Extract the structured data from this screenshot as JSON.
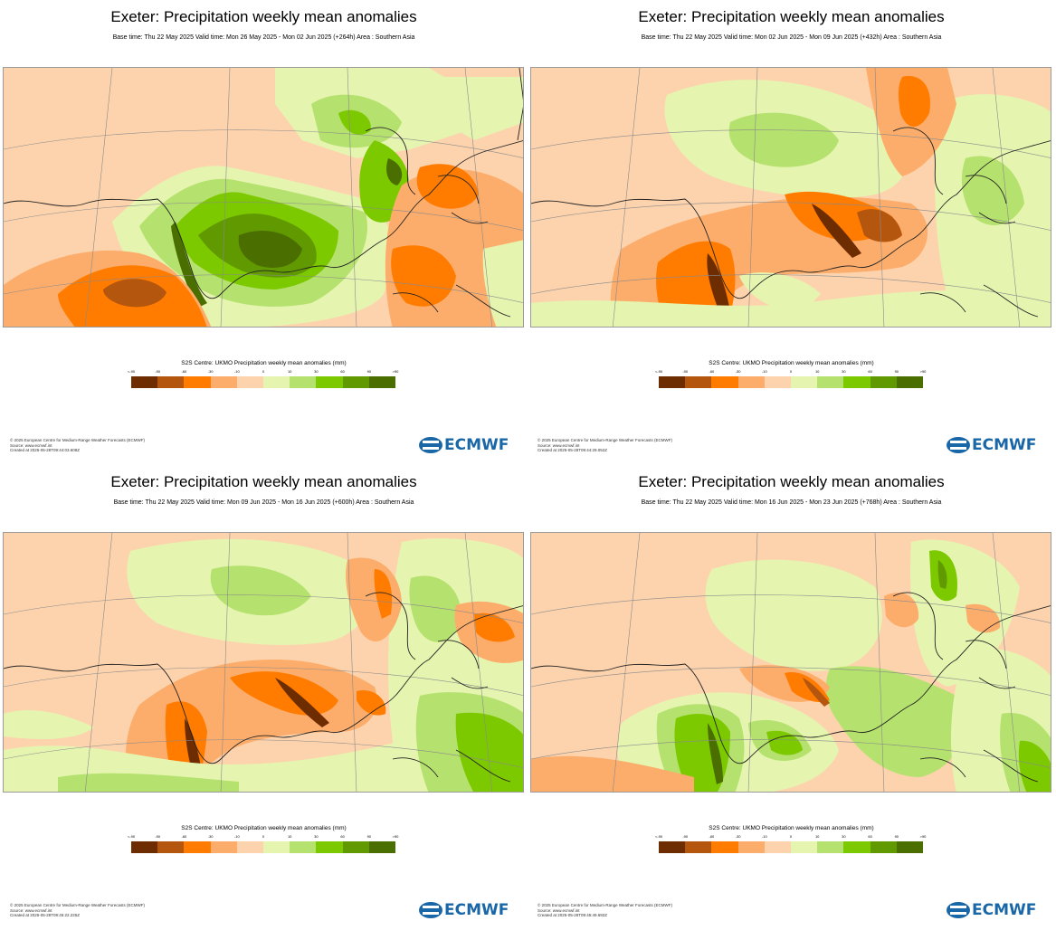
{
  "legend": {
    "title": "S2S Centre: UKMO Precipitation weekly mean anomalies (mm)",
    "ticks": [
      "<-90",
      "-90",
      "-60",
      "-30",
      "-10",
      "0",
      "10",
      "30",
      "60",
      "90",
      ">90"
    ],
    "colors": [
      "#6e2d00",
      "#b5560f",
      "#ff7c00",
      "#fdad6b",
      "#fdd3ad",
      "#e5f5b0",
      "#b5e16e",
      "#7dc900",
      "#619a00",
      "#4b6e00"
    ]
  },
  "panels": [
    {
      "title": "Exeter: Precipitation weekly mean anomalies",
      "subtitle": "Base time: Thu 22 May 2025 Valid time: Mon 26 May 2025 - Mon 02 Jun 2025 (+264h) Area : Southern Asia",
      "footer": [
        "© 2025 European Centre for Medium-Range Weather Forecasts (ECMWF)",
        "Source: www.ecmwf.int",
        "Created at 2025-05-28T09:44:03.608Z"
      ],
      "logo": "ECMWF"
    },
    {
      "title": "Exeter: Precipitation weekly mean anomalies",
      "subtitle": "Base time: Thu 22 May 2025 Valid time: Mon 02 Jun 2025 - Mon 09 Jun 2025 (+432h) Area : Southern Asia",
      "footer": [
        "© 2025 European Centre for Medium-Range Weather Forecasts (ECMWF)",
        "Source: www.ecmwf.int",
        "Created at 2025-05-28T09:44:29.052Z"
      ],
      "logo": "ECMWF"
    },
    {
      "title": "Exeter: Precipitation weekly mean anomalies",
      "subtitle": "Base time: Thu 22 May 2025 Valid time: Mon 09 Jun 2025 - Mon 16 Jun 2025 (+600h) Area : Southern Asia",
      "footer": [
        "© 2025 European Centre for Medium-Range Weather Forecasts (ECMWF)",
        "Source: www.ecmwf.int",
        "Created at 2025-05-28T09:45:22.225Z"
      ],
      "logo": "ECMWF"
    },
    {
      "title": "Exeter: Precipitation weekly mean anomalies",
      "subtitle": "Base time: Thu 22 May 2025 Valid time: Mon 16 Jun 2025 - Mon 23 Jun 2025 (+768h) Area : Southern Asia",
      "footer": [
        "© 2025 European Centre for Medium-Range Weather Forecasts (ECMWF)",
        "Source: www.ecmwf.int",
        "Created at 2025-05-28T09:45:49.692Z"
      ],
      "logo": "ECMWF"
    }
  ]
}
